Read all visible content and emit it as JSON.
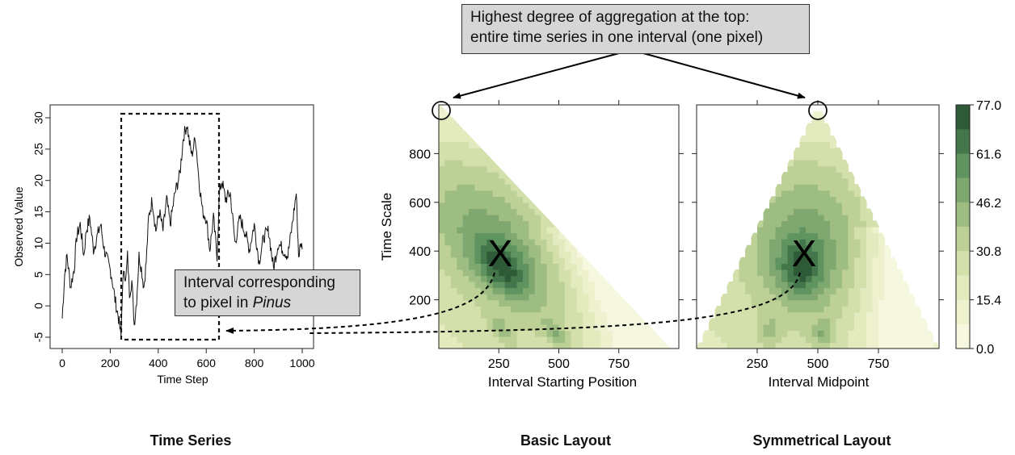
{
  "chart_data": [
    {
      "panel": "Time Series",
      "type": "line",
      "xlabel": "Time Step",
      "ylabel": "Observed Value",
      "xlim": [
        0,
        1000
      ],
      "ylim": [
        -5,
        30
      ],
      "xticks": [
        "0",
        "200",
        "400",
        "600",
        "800",
        "1000"
      ],
      "yticks": [
        "-5",
        "0",
        "5",
        "10",
        "15",
        "20",
        "25",
        "30"
      ],
      "series": [
        {
          "x": [
            0,
            10,
            20,
            35,
            50,
            60,
            75,
            90,
            100,
            115,
            130,
            145,
            160,
            175,
            190,
            205,
            220,
            235,
            245,
            250,
            258,
            265,
            272,
            280,
            290,
            300,
            310,
            320,
            330,
            340,
            350,
            360,
            375,
            390,
            405,
            420,
            435,
            450,
            470,
            490,
            505,
            520,
            530,
            540,
            555,
            570,
            585,
            600,
            615,
            630,
            645,
            655,
            665,
            680,
            700,
            720,
            740,
            760,
            780,
            800,
            820,
            840,
            860,
            880,
            900,
            920,
            940,
            955,
            965,
            975,
            985,
            995,
            1000
          ],
          "y": [
            -2,
            5,
            8,
            3,
            6,
            11,
            13,
            8,
            12,
            14,
            9,
            11,
            13,
            9,
            7,
            5,
            1,
            -2,
            -5,
            2,
            6,
            4,
            8,
            2,
            4,
            -3,
            1,
            8,
            6,
            3,
            7,
            14,
            17,
            12,
            15,
            12,
            17,
            13,
            18,
            21,
            27,
            29,
            26,
            24,
            27,
            20,
            15,
            14,
            9,
            14,
            8,
            18,
            20,
            17,
            18,
            10,
            14,
            12,
            9,
            13,
            7,
            11,
            12,
            6,
            10,
            9,
            8,
            12,
            15,
            18,
            8,
            10,
            9
          ]
        }
      ],
      "annotation": {
        "label_line1": "Interval corresponding",
        "label_line2": "to pixel in",
        "label_italic": "Pinus",
        "interval": [
          250,
          650
        ]
      },
      "caption": "Time Series"
    },
    {
      "panel": "Basic Layout",
      "type": "heatmap",
      "xlabel": "Interval Starting Position",
      "ylabel": "Time Scale",
      "xlim": [
        0,
        1000
      ],
      "ylim": [
        0,
        1000
      ],
      "xticks": [
        "250",
        "500",
        "750"
      ],
      "yticks": [
        "200",
        "400",
        "600",
        "800"
      ],
      "marker": {
        "label": "X",
        "x": 250,
        "y": 400
      },
      "caption": "Basic Layout"
    },
    {
      "panel": "Symmetrical Layout",
      "type": "heatmap",
      "xlabel": "Interval Midpoint",
      "ylabel": "",
      "xlim": [
        0,
        1000
      ],
      "ylim": [
        0,
        1000
      ],
      "xticks": [
        "250",
        "500",
        "750"
      ],
      "marker": {
        "label": "X",
        "x": 450,
        "y": 400
      },
      "caption": "Symmetrical Layout"
    }
  ],
  "colorbar": {
    "ticks": [
      "77.0",
      "61.6",
      "46.2",
      "30.8",
      "15.4",
      "0.0"
    ],
    "colors": [
      "#2e5a37",
      "#43764a",
      "#5f935f",
      "#7ea86f",
      "#9ebd82",
      "#bdd197",
      "#d4e0ac",
      "#e3eabe",
      "#eef1cd",
      "#f6f7df"
    ]
  },
  "top_annotation": {
    "line1": "Highest degree of aggregation at the top:",
    "line2": "entire time series in one interval (one pixel)"
  }
}
